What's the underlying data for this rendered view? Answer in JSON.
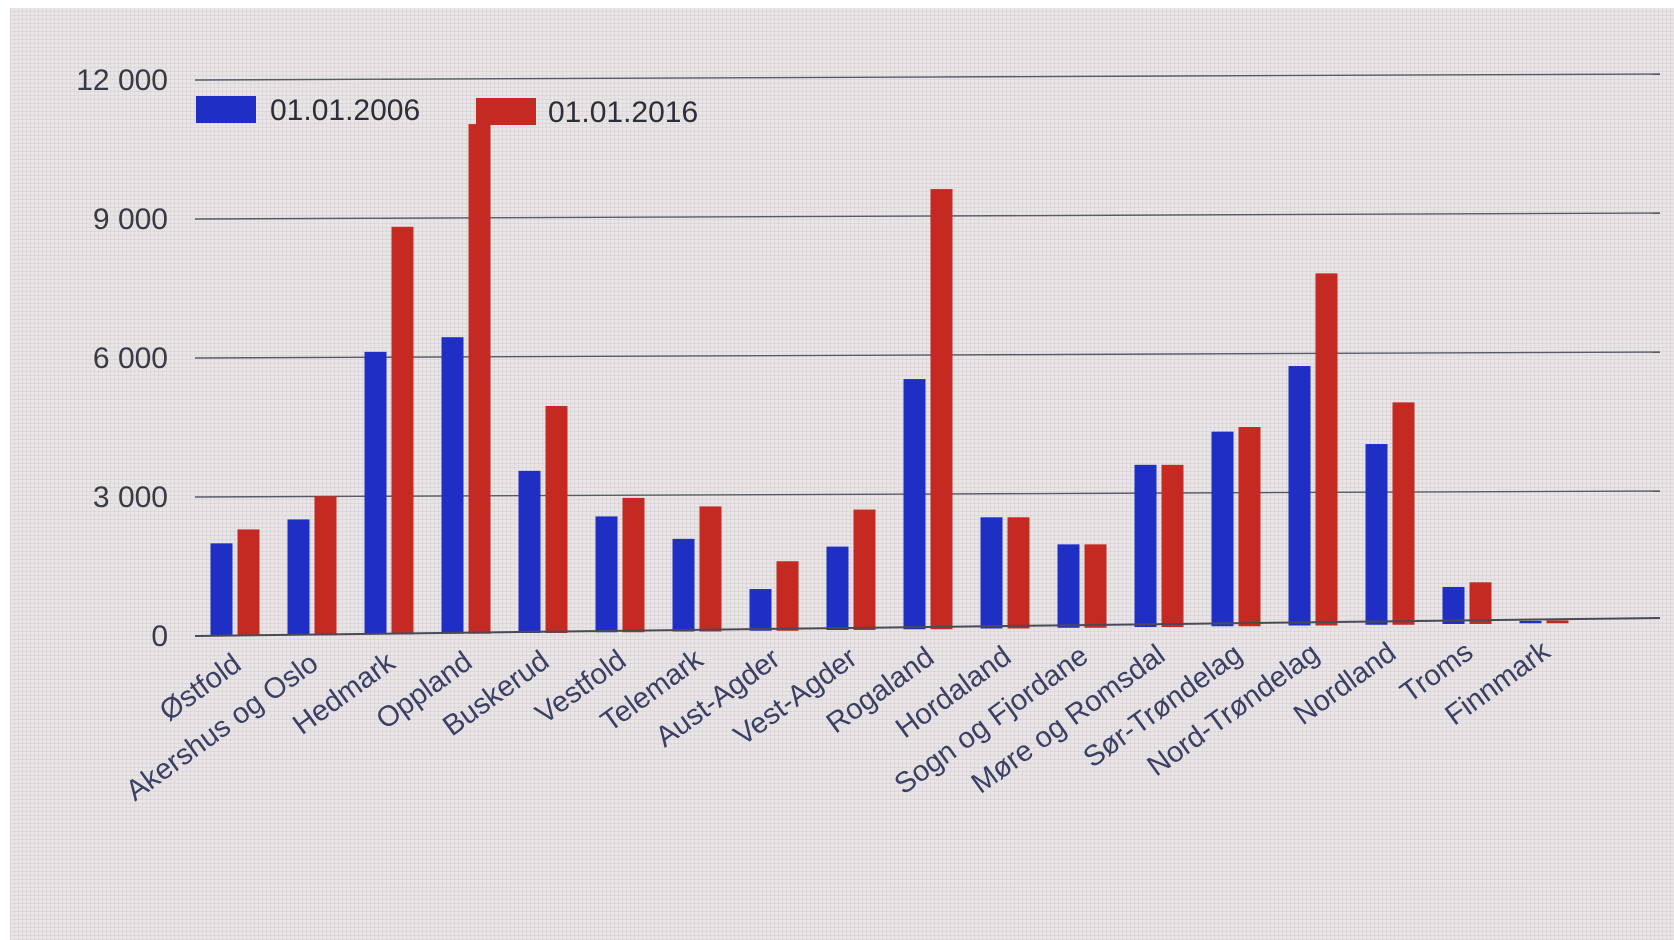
{
  "chart_data": {
    "type": "bar",
    "title": "",
    "xlabel": "",
    "ylabel": "",
    "ylim": [
      0,
      12000
    ],
    "yticks": [
      0,
      3000,
      6000,
      9000,
      12000
    ],
    "ytick_labels": [
      "0",
      "3 000",
      "6 000",
      "9 000",
      "12 000"
    ],
    "grid": true,
    "legend_position": "top-left",
    "categories": [
      "Østfold",
      "Akershus og Oslo",
      "Hedmark",
      "Oppland",
      "Buskerud",
      "Vestfold",
      "Telemark",
      "Aust-Agder",
      "Vest-Agder",
      "Rogaland",
      "Hordaland",
      "Sogn og Fjordane",
      "Møre og Romsdal",
      "Sør-Trøndelag",
      "Nord-Trøndelag",
      "Nordland",
      "Troms",
      "Finnmark"
    ],
    "series": [
      {
        "name": "01.01.2006",
        "color": "#1f2fc4",
        "values": [
          2000,
          2500,
          6100,
          6400,
          3500,
          2500,
          2000,
          900,
          1800,
          5400,
          2400,
          1800,
          3500,
          4200,
          5600,
          3900,
          800,
          50
        ]
      },
      {
        "name": "01.01.2016",
        "color": "#c42a22",
        "values": [
          2300,
          3000,
          8800,
          11000,
          4900,
          2900,
          2700,
          1500,
          2600,
          9500,
          2400,
          1800,
          3500,
          4300,
          7600,
          4800,
          900,
          60
        ]
      }
    ]
  }
}
